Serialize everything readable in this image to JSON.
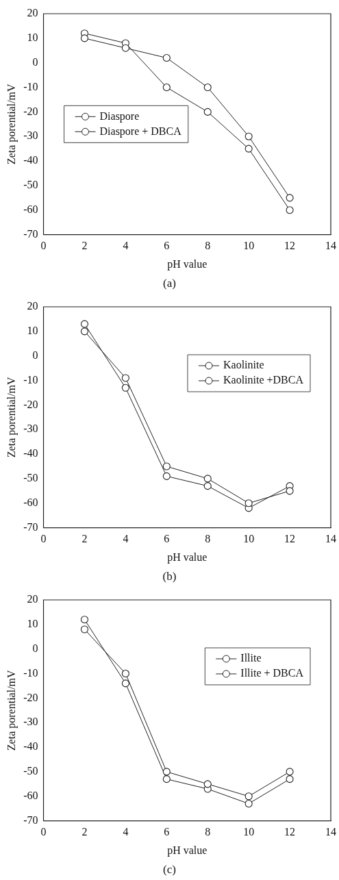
{
  "chart_data": [
    {
      "type": "line",
      "xlabel": "pH value",
      "ylabel": "Zeta porential/mV",
      "annotations": [
        "(a)"
      ],
      "x": [
        2,
        4,
        6,
        8,
        10,
        12
      ],
      "xlim": [
        0,
        14
      ],
      "xticks": [
        0,
        2,
        4,
        6,
        8,
        10,
        12,
        14
      ],
      "ylim": [
        -70,
        20
      ],
      "yticks": [
        -70,
        -60,
        -50,
        -40,
        -30,
        -20,
        -10,
        0,
        10,
        20
      ],
      "marker": "circle",
      "legend": "center left",
      "series": [
        {
          "name": "Diaspore",
          "color": "#222222",
          "values": [
            10,
            6,
            2,
            -10,
            -30,
            -55
          ]
        },
        {
          "name": "Diaspore + DBCA",
          "color": "#222222",
          "values": [
            12,
            8,
            -10,
            -20,
            -35,
            -60
          ]
        }
      ]
    },
    {
      "type": "line",
      "xlabel": "pH value",
      "ylabel": "Zeta porential/mV",
      "annotations": [
        "(b)"
      ],
      "x": [
        2,
        4,
        6,
        8,
        10,
        12
      ],
      "xlim": [
        0,
        14
      ],
      "xticks": [
        0,
        2,
        4,
        6,
        8,
        10,
        12,
        14
      ],
      "ylim": [
        -70,
        20
      ],
      "yticks": [
        -70,
        -60,
        -50,
        -40,
        -30,
        -20,
        -10,
        0,
        10,
        20
      ],
      "marker": "circle",
      "legend": "top right",
      "series": [
        {
          "name": "Kaolinite",
          "color": "#222222",
          "values": [
            10,
            -9,
            -45,
            -50,
            -60,
            -55
          ]
        },
        {
          "name": "Kaolinite +DBCA",
          "color": "#222222",
          "values": [
            13,
            -13,
            -49,
            -53,
            -62,
            -53
          ]
        }
      ]
    },
    {
      "type": "line",
      "xlabel": "pH value",
      "ylabel": "Zeta porential/mV",
      "annotations": [
        "(c)"
      ],
      "x": [
        2,
        4,
        6,
        8,
        10,
        12
      ],
      "xlim": [
        0,
        14
      ],
      "xticks": [
        0,
        2,
        4,
        6,
        8,
        10,
        12,
        14
      ],
      "ylim": [
        -70,
        20
      ],
      "yticks": [
        -70,
        -60,
        -50,
        -40,
        -30,
        -20,
        -10,
        0,
        10,
        20
      ],
      "marker": "circle",
      "legend": "top right",
      "series": [
        {
          "name": "Illite",
          "color": "#222222",
          "values": [
            8,
            -10,
            -50,
            -55,
            -60,
            -50
          ]
        },
        {
          "name": "Illite + DBCA",
          "color": "#222222",
          "values": [
            12,
            -14,
            -53,
            -57,
            -63,
            -53
          ]
        }
      ]
    }
  ]
}
